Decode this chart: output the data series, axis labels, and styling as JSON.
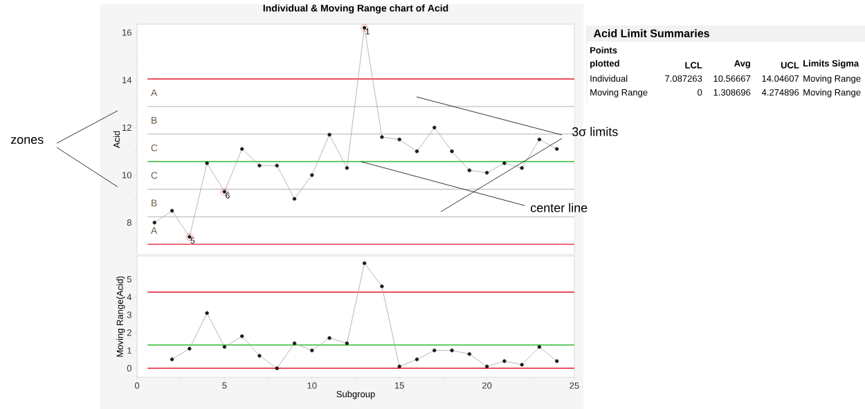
{
  "chart_data": [
    {
      "type": "line",
      "title": "Individual & Moving Range chart of Acid",
      "ylabel": "Acid",
      "xlim": [
        0,
        25
      ],
      "ylim": [
        6.65,
        16.35
      ],
      "yticks": [
        {
          "value": 7,
          "label": null
        },
        8,
        {
          "value": 9,
          "label": null
        },
        10,
        {
          "value": 11,
          "label": null
        },
        12,
        {
          "value": 13,
          "label": null
        },
        14,
        {
          "value": 15,
          "label": null
        },
        16
      ],
      "tick_labels": "y",
      "marker": "circle",
      "series": [
        {
          "color": "#1a1a1a",
          "x": [
            1,
            2,
            3,
            4,
            5,
            6,
            7,
            8,
            9,
            10,
            11,
            12,
            13,
            14,
            15,
            16,
            17,
            18,
            19,
            20,
            21,
            22,
            23,
            24
          ],
          "values": [
            8.0,
            8.5,
            7.4,
            10.5,
            9.3,
            11.1,
            10.4,
            10.4,
            9.0,
            10.0,
            11.7,
            10.3,
            16.2,
            11.6,
            11.5,
            11.0,
            12.0,
            11.0,
            10.2,
            10.1,
            10.5,
            10.3,
            11.5,
            11.1
          ]
        }
      ],
      "bands": [
        {
          "axis": "y",
          "from": 12.886,
          "to": 14.04607,
          "label": "A",
          "color": "#ffffff"
        },
        {
          "axis": "y",
          "from": 11.726,
          "to": 12.886,
          "label": "B",
          "color": "#ffffff"
        },
        {
          "axis": "y",
          "from": 10.56667,
          "to": 11.726,
          "label": "C",
          "color": "#ffffff"
        },
        {
          "axis": "y",
          "from": 9.407,
          "to": 10.56667,
          "label": "C",
          "color": "#ffffff"
        },
        {
          "axis": "y",
          "from": 8.247,
          "to": 9.407,
          "label": "B",
          "color": "#ffffff"
        },
        {
          "axis": "y",
          "from": 7.087263,
          "to": 8.247,
          "label": "A",
          "color": "#ffffff"
        }
      ],
      "ref_lines": [
        {
          "axis": "y",
          "value": 12.886,
          "color": "#8c8c8c"
        },
        {
          "axis": "y",
          "value": 11.726,
          "color": "#8c8c8c"
        },
        {
          "axis": "y",
          "value": 9.407,
          "color": "#8c8c8c"
        },
        {
          "axis": "y",
          "value": 8.247,
          "color": "#8c8c8c"
        },
        {
          "axis": "y",
          "value": 14.04607,
          "color": "#e8394a"
        },
        {
          "axis": "y",
          "value": 10.56667,
          "color": "#2db82d"
        },
        {
          "axis": "y",
          "value": 7.087263,
          "color": "#e8394a"
        }
      ],
      "annotations": [
        {
          "text": "1",
          "x": 13,
          "y": 16.2
        },
        {
          "text": "5",
          "x": 3,
          "y": 7.4
        },
        {
          "text": "6",
          "x": 5,
          "y": 9.3
        },
        "zones",
        "3σ limits",
        {
          "text": "center line",
          "x": 12.8,
          "y": 10.56667
        }
      ]
    },
    {
      "type": "line",
      "xlabel": "Subgroup",
      "ylabel": "Moving Range(Acid)",
      "xlim": [
        0,
        25
      ],
      "ylim": [
        -0.5,
        6.3
      ],
      "xticks": [
        0,
        {
          "value": 2.5,
          "label": null
        },
        5,
        {
          "value": 7.5,
          "label": null
        },
        10,
        {
          "value": 12.5,
          "label": null
        },
        15,
        {
          "value": 17.5,
          "label": null
        },
        20,
        {
          "value": 22.5,
          "label": null
        },
        25
      ],
      "yticks": [
        0,
        1,
        2,
        3,
        4,
        5
      ],
      "marker": "circle",
      "series": [
        {
          "color": "#1a1a1a",
          "x": [
            2,
            3,
            4,
            5,
            6,
            7,
            8,
            9,
            10,
            11,
            12,
            13,
            14,
            15,
            16,
            17,
            18,
            19,
            20,
            21,
            22,
            23,
            24
          ],
          "values": [
            0.5,
            1.1,
            3.1,
            1.2,
            1.8,
            0.7,
            0,
            1.4,
            1.0,
            1.7,
            1.4,
            5.9,
            4.6,
            0.1,
            0.5,
            1.0,
            1.0,
            0.8,
            0.1,
            0.4,
            0.2,
            1.2,
            0.4
          ]
        }
      ],
      "ref_lines": [
        {
          "axis": "y",
          "value": 4.274896,
          "color": "#e8394a"
        },
        {
          "axis": "y",
          "value": 1.308696,
          "color": "#2db82d"
        },
        {
          "axis": "y",
          "value": 0,
          "color": "#e8394a"
        }
      ]
    },
    {
      "type": "other",
      "title": "Acid Limit Summaries",
      "annotations": [
        "Points plotted",
        "LCL",
        "Avg",
        "UCL",
        "Limits Sigma",
        "Individual",
        "7.087263",
        "10.56667",
        "14.04607",
        "Moving Range",
        "Moving Range",
        "0",
        "1.308696",
        "4.274896",
        "Moving Range"
      ]
    }
  ]
}
